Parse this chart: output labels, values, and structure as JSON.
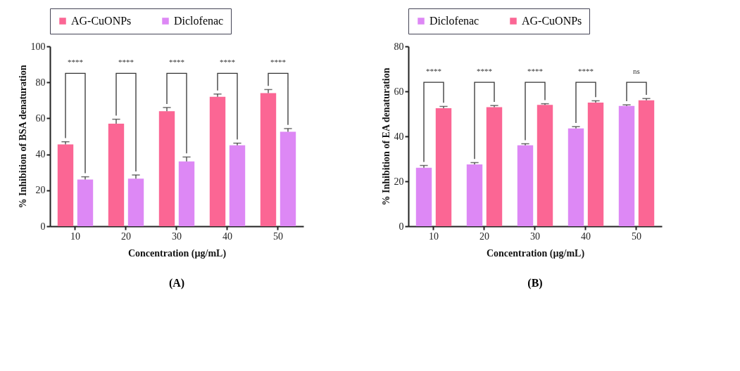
{
  "chart_data": [
    {
      "type": "bar",
      "title": "(A)",
      "xlabel": "Concentration (µg/mL)",
      "ylabel": "% Inhibition of BSA denaturation",
      "categories": [
        "10",
        "20",
        "30",
        "40",
        "50"
      ],
      "series": [
        {
          "name": "AG-CuONPs",
          "color": "#fb6694",
          "values": [
            45.5,
            57,
            64,
            72,
            74
          ],
          "errors": [
            1.5,
            2.5,
            2,
            1.5,
            2
          ]
        },
        {
          "name": "Diclofenac",
          "color": "#dd88f5",
          "values": [
            26,
            26.5,
            36,
            45,
            52.5
          ],
          "errors": [
            1.5,
            2,
            2.5,
            1.2,
            1.8
          ]
        }
      ],
      "ylim": [
        0,
        100
      ],
      "yticks": [
        0,
        20,
        40,
        60,
        80,
        100
      ],
      "legend": "top",
      "annotations": [
        "****",
        "****",
        "****",
        "****",
        "****"
      ]
    },
    {
      "type": "bar",
      "title": "(B)",
      "xlabel": "Concentration (µg/mL)",
      "ylabel": "% Inhibition of EA denaturation",
      "categories": [
        "10",
        "20",
        "30",
        "40",
        "50"
      ],
      "series": [
        {
          "name": "Diclofenac",
          "color": "#dd88f5",
          "values": [
            26,
            27.5,
            36,
            43.5,
            53.5
          ],
          "errors": [
            1,
            0.8,
            0.7,
            0.8,
            0.5
          ]
        },
        {
          "name": "AG-CuONPs",
          "color": "#fb6694",
          "values": [
            52.5,
            53,
            54,
            55,
            56
          ],
          "errors": [
            0.8,
            0.7,
            0.5,
            0.8,
            0.8
          ]
        }
      ],
      "ylim": [
        0,
        80
      ],
      "yticks": [
        0,
        20,
        40,
        60,
        80
      ],
      "legend": "top",
      "annotations": [
        "****",
        "****",
        "****",
        "****",
        "ns"
      ]
    }
  ]
}
